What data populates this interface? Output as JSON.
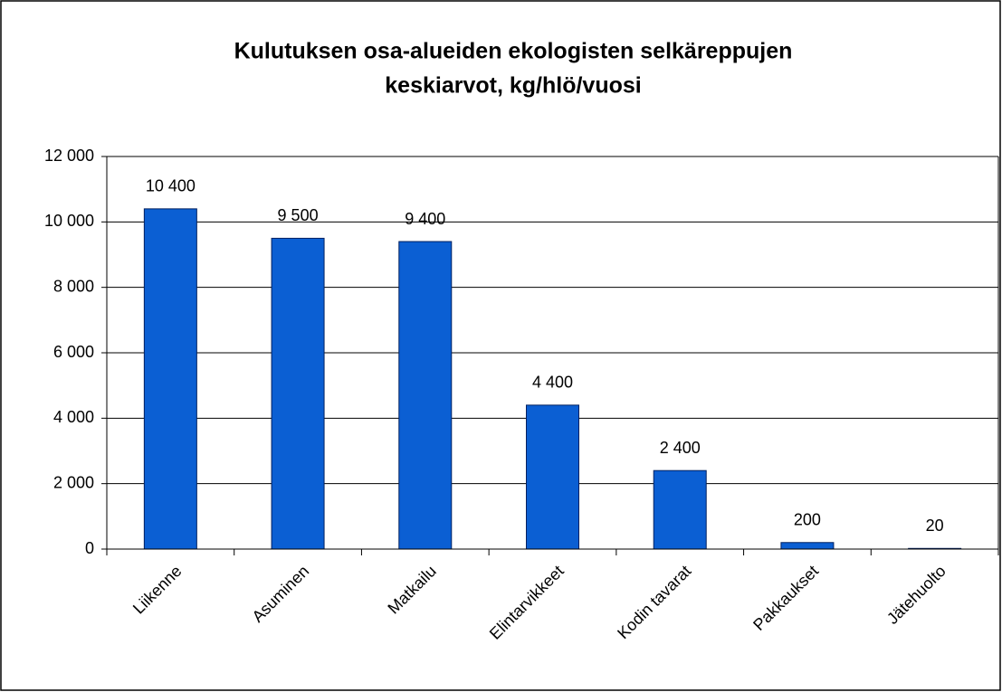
{
  "chart_data": {
    "type": "bar",
    "title": [
      "Kulutuksen osa-alueiden ekologisten selkäreppujen",
      "keskiarvot, kg/hlö/vuosi"
    ],
    "categories": [
      "Liikenne",
      "Asuminen",
      "Matkailu",
      "Elintarvikkeet",
      "Kodin tavarat",
      "Pakkaukset",
      "Jätehuolto"
    ],
    "values": [
      10400,
      9500,
      9400,
      4400,
      2400,
      200,
      20
    ],
    "value_labels": [
      "10 400",
      "9 500",
      "9 400",
      "4 400",
      "2 400",
      "200",
      "20"
    ],
    "color": "#0b5fd3",
    "ylim": [
      0,
      12000
    ],
    "yticks": [
      0,
      {
        "value": 2000,
        "label": "2 000"
      },
      {
        "value": 4000,
        "label": "4 000"
      },
      {
        "value": 6000,
        "label": "6 000"
      },
      {
        "value": 8000,
        "label": "8 000"
      },
      {
        "value": 10000,
        "label": "10 000"
      },
      {
        "value": 12000,
        "label": "12 000"
      }
    ],
    "grid": true
  }
}
